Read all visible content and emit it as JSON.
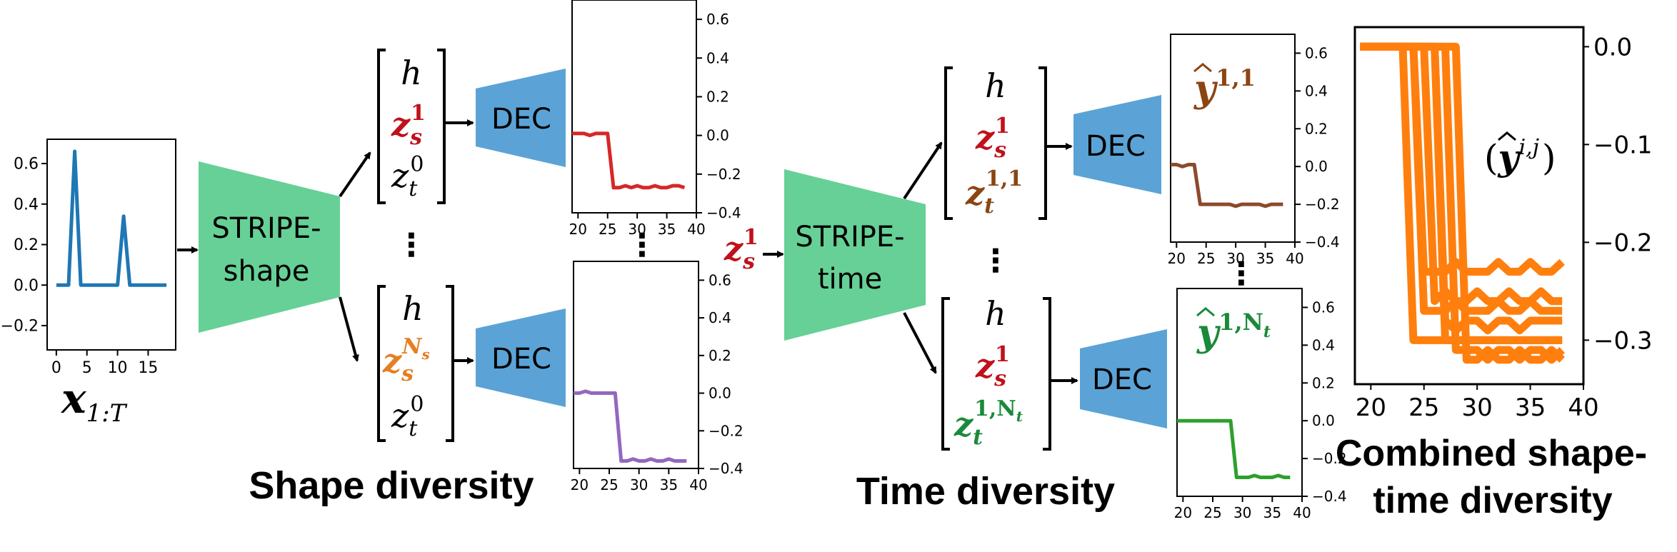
{
  "colors": {
    "encoder": "#66d096",
    "decoder": "#5ba3d6",
    "input_series": "#1f77b4",
    "shape_1": "#d62728",
    "shape_ns": "#9467bd",
    "time_1": "#8c4a2a",
    "time_nt": "#2ca02c",
    "combined": "#ff7f0e",
    "z_s_red": "#c0111b",
    "z_s_orange": "#e67e22",
    "z_t_brown": "#8b4513",
    "z_t_green": "#1a8a3a"
  },
  "input": {
    "label_base": "x",
    "label_sub": "1:T",
    "x_ticks": [
      "0",
      "5",
      "10",
      "15"
    ],
    "y_ticks": [
      "0.6",
      "0.4",
      "0.2",
      "0.0",
      "−0.2"
    ]
  },
  "encoders": {
    "shape_line1": "STRIPE-",
    "shape_line2": "shape",
    "time_line1": "STRIPE-",
    "time_line2": "time"
  },
  "decoder_label": "DEC",
  "latents": {
    "h": "h",
    "z_s_base": "z",
    "z_s_sub": "s",
    "z_s_sup_1": "1",
    "z_s_sup_ns": "N",
    "z_s_sup_ns_sub": "s",
    "z_t_base": "z",
    "z_t_sub": "t",
    "z_t_sup_0": "0",
    "z_t_sup_11": "1,1",
    "z_t_sup_1nt": "1,N",
    "z_t_sup_1nt_sub": "t"
  },
  "outputs": {
    "y_base": "y",
    "y_sup_11": "1,1",
    "y_sup_1nt": "1,N",
    "y_sup_1nt_sub": "t",
    "y_sup_ij": "i,j",
    "paren_open": "(",
    "paren_close": ")"
  },
  "small_axes": {
    "x_ticks": [
      "20",
      "25",
      "30",
      "35",
      "40"
    ],
    "y_ticks_a": [
      "0.6",
      "0.4",
      "0.2",
      "0.0",
      "−0.2",
      "−0.4"
    ],
    "y_ticks_b": [
      "0.6",
      "0.4",
      "0.2",
      "0.0",
      "−0.2",
      "−0.4"
    ],
    "y_ticks_c": [
      "0.6",
      "0.4",
      "0.2",
      "0.0",
      "−0.2",
      "−0.4"
    ],
    "y_ticks_d": [
      "0.6",
      "0.4",
      "0.2",
      "0.0",
      "−0.2",
      "−0.4"
    ]
  },
  "combined_axes": {
    "x_ticks": [
      "20",
      "25",
      "30",
      "35",
      "40"
    ],
    "y_ticks": [
      "0.0",
      "−0.1",
      "−0.2",
      "−0.3"
    ]
  },
  "captions": {
    "shape": "Shape diversity",
    "time": "Time diversity",
    "combined_line1": "Combined shape-",
    "combined_line2": "time diversity"
  },
  "ellipsis": "⋮",
  "chart_data": [
    {
      "type": "line",
      "name": "input-series",
      "x": [
        0,
        1,
        2,
        3,
        4,
        5,
        6,
        7,
        8,
        9,
        10,
        11,
        12,
        13,
        14,
        15,
        16,
        17,
        18
      ],
      "y": [
        0.0,
        0.0,
        0.0,
        0.66,
        0.0,
        0.0,
        0.0,
        0.0,
        0.0,
        0.0,
        0.0,
        0.34,
        0.0,
        0.0,
        0.0,
        0.0,
        0.0,
        0.0,
        0.0
      ],
      "xlim": [
        -1.5,
        19.5
      ],
      "ylim": [
        -0.32,
        0.72
      ]
    },
    {
      "type": "line",
      "name": "shape-sample-1",
      "x": [
        19,
        20,
        21,
        22,
        23,
        24,
        25,
        26,
        27,
        28,
        29,
        30,
        31,
        32,
        33,
        34,
        35,
        36,
        37,
        38
      ],
      "y": [
        0.01,
        0.01,
        0.01,
        0.0,
        0.01,
        0.01,
        0.01,
        -0.27,
        -0.27,
        -0.26,
        -0.27,
        -0.26,
        -0.27,
        -0.27,
        -0.26,
        -0.27,
        -0.27,
        -0.26,
        -0.26,
        -0.27
      ],
      "xlim": [
        19,
        40
      ],
      "ylim": [
        -0.4,
        0.7
      ]
    },
    {
      "type": "line",
      "name": "shape-sample-ns",
      "x": [
        19,
        20,
        21,
        22,
        23,
        24,
        25,
        26,
        27,
        28,
        29,
        30,
        31,
        32,
        33,
        34,
        35,
        36,
        37,
        38
      ],
      "y": [
        0.0,
        0.0,
        0.01,
        0.0,
        0.0,
        0.0,
        0.0,
        0.0,
        -0.36,
        -0.36,
        -0.35,
        -0.36,
        -0.36,
        -0.35,
        -0.36,
        -0.36,
        -0.35,
        -0.36,
        -0.36,
        -0.36
      ],
      "xlim": [
        19,
        40
      ],
      "ylim": [
        -0.4,
        0.7
      ]
    },
    {
      "type": "line",
      "name": "time-sample-11",
      "x": [
        19,
        20,
        21,
        22,
        23,
        24,
        25,
        26,
        27,
        28,
        29,
        30,
        31,
        32,
        33,
        34,
        35,
        36,
        37,
        38
      ],
      "y": [
        0.01,
        0.01,
        0.0,
        0.01,
        0.01,
        -0.2,
        -0.2,
        -0.2,
        -0.2,
        -0.2,
        -0.2,
        -0.21,
        -0.2,
        -0.2,
        -0.2,
        -0.2,
        -0.21,
        -0.2,
        -0.2,
        -0.2
      ],
      "xlim": [
        19,
        40
      ],
      "ylim": [
        -0.4,
        0.7
      ]
    },
    {
      "type": "line",
      "name": "time-sample-1nt",
      "x": [
        19,
        20,
        21,
        22,
        23,
        24,
        25,
        26,
        27,
        28,
        29,
        30,
        31,
        32,
        33,
        34,
        35,
        36,
        37,
        38
      ],
      "y": [
        0.0,
        0.0,
        0.0,
        0.0,
        0.0,
        0.0,
        0.0,
        0.0,
        0.0,
        0.0,
        -0.3,
        -0.3,
        -0.3,
        -0.29,
        -0.3,
        -0.3,
        -0.3,
        -0.29,
        -0.3,
        -0.3
      ],
      "xlim": [
        19,
        40
      ],
      "ylim": [
        -0.4,
        0.7
      ]
    },
    {
      "type": "line",
      "name": "combined-samples",
      "x": [
        19,
        20,
        21,
        22,
        23,
        24,
        25,
        26,
        27,
        28,
        29,
        30,
        31,
        32,
        33,
        34,
        35,
        36,
        37,
        38
      ],
      "series": [
        {
          "name": "s1",
          "y": [
            0.0,
            0.0,
            0.0,
            0.0,
            0.0,
            -0.3,
            -0.3,
            -0.3,
            -0.3,
            -0.3,
            -0.3,
            -0.3,
            -0.3,
            -0.3,
            -0.3,
            -0.3,
            -0.3,
            -0.3,
            -0.3,
            -0.3
          ]
        },
        {
          "name": "s2",
          "y": [
            0.0,
            0.0,
            0.0,
            0.0,
            0.0,
            0.0,
            -0.23,
            -0.23,
            -0.23,
            -0.22,
            -0.23,
            -0.23,
            -0.23,
            -0.22,
            -0.23,
            -0.23,
            -0.22,
            -0.23,
            -0.23,
            -0.22
          ]
        },
        {
          "name": "s3",
          "y": [
            0.0,
            0.0,
            0.0,
            0.0,
            0.0,
            0.0,
            0.0,
            -0.26,
            -0.25,
            -0.26,
            -0.26,
            -0.25,
            -0.26,
            -0.26,
            -0.25,
            -0.26,
            -0.26,
            -0.25,
            -0.26,
            -0.26
          ]
        },
        {
          "name": "s4",
          "y": [
            0.0,
            0.0,
            0.0,
            0.0,
            0.0,
            0.0,
            0.0,
            0.0,
            -0.28,
            -0.29,
            -0.28,
            -0.28,
            -0.29,
            -0.28,
            -0.28,
            -0.29,
            -0.28,
            -0.28,
            -0.28,
            -0.28
          ]
        },
        {
          "name": "s5",
          "y": [
            0.0,
            0.0,
            0.0,
            0.0,
            0.0,
            0.0,
            0.0,
            0.0,
            0.0,
            -0.31,
            -0.31,
            -0.31,
            -0.32,
            -0.31,
            -0.31,
            -0.32,
            -0.31,
            -0.31,
            -0.32,
            -0.31
          ]
        },
        {
          "name": "s6",
          "y": [
            0.0,
            0.0,
            0.0,
            0.0,
            0.0,
            0.0,
            0.0,
            0.0,
            0.0,
            0.0,
            -0.32,
            -0.32,
            -0.31,
            -0.32,
            -0.32,
            -0.31,
            -0.32,
            -0.32,
            -0.31,
            -0.32
          ]
        },
        {
          "name": "s7",
          "y": [
            0.0,
            0.0,
            0.0,
            0.0,
            0.0,
            0.0,
            -0.27,
            -0.27,
            -0.27,
            -0.26,
            -0.27,
            -0.27,
            -0.27,
            -0.26,
            -0.27,
            -0.27,
            -0.26,
            -0.27,
            -0.27,
            -0.27
          ]
        },
        {
          "name": "s8",
          "y": [
            0.0,
            0.0,
            0.0,
            0.0,
            0.0,
            0.0,
            0.0,
            0.0,
            -0.3,
            -0.3,
            -0.3,
            -0.3,
            -0.3,
            -0.3,
            -0.3,
            -0.3,
            -0.3,
            -0.3,
            -0.3,
            -0.3
          ]
        }
      ],
      "xlim": [
        18.5,
        40
      ],
      "ylim": [
        -0.345,
        0.02
      ]
    }
  ]
}
